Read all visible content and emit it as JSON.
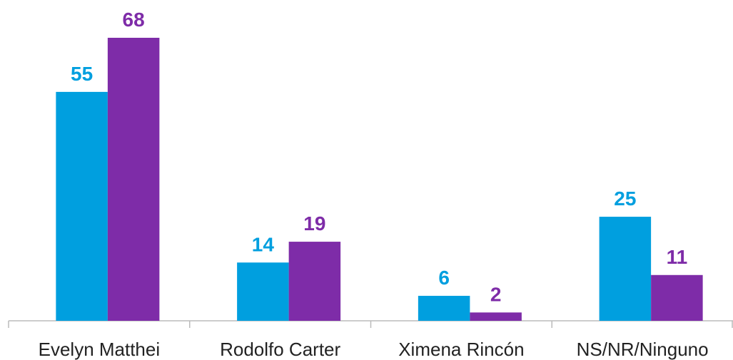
{
  "chart_data": {
    "type": "bar",
    "categories": [
      "Evelyn Matthei",
      "Rodolfo Carter",
      "Ximena Rincón",
      "NS/NR/Ninguno"
    ],
    "series": [
      {
        "color": "#009fdf",
        "values": [
          55,
          14,
          6,
          25
        ]
      },
      {
        "color": "#7e2ca8",
        "values": [
          68,
          19,
          2,
          11
        ]
      }
    ]
  }
}
